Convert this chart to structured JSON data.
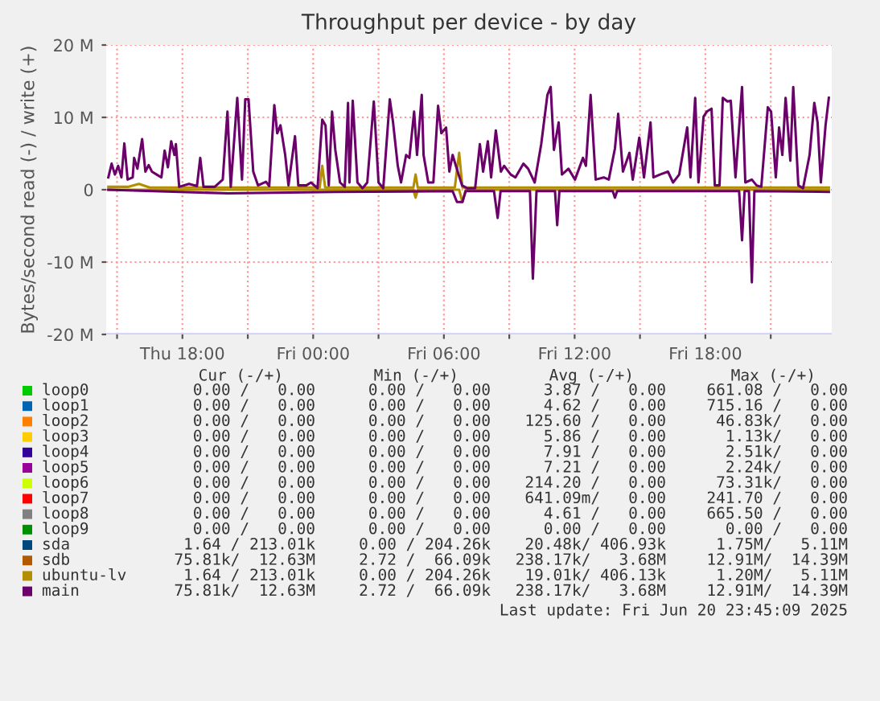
{
  "chart_data": {
    "type": "line",
    "title": "Throughput per device - by day",
    "ylabel": "Bytes/second read (-) / write (+)",
    "xlim": [
      "2025-06-19T14:30",
      "2025-06-20T23:48"
    ],
    "ylim": [
      -20,
      20
    ],
    "xticks": [
      {
        "value": "2025-06-19T15:00",
        "label": null
      },
      {
        "value": "2025-06-19T18:00",
        "label": "Thu 18:00"
      },
      {
        "value": "2025-06-19T21:00",
        "label": null
      },
      {
        "value": "2025-06-20T00:00",
        "label": "Fri 00:00"
      },
      {
        "value": "2025-06-20T03:00",
        "label": null
      },
      {
        "value": "2025-06-20T06:00",
        "label": "Fri 06:00"
      },
      {
        "value": "2025-06-20T09:00",
        "label": null
      },
      {
        "value": "2025-06-20T12:00",
        "label": "Fri 12:00"
      },
      {
        "value": "2025-06-20T15:00",
        "label": null
      },
      {
        "value": "2025-06-20T18:00",
        "label": "Fri 18:00"
      },
      {
        "value": "2025-06-20T21:00",
        "label": null
      }
    ],
    "yticks": [
      {
        "value": -20,
        "label": "-20 M"
      },
      {
        "value": -10,
        "label": "-10 M"
      },
      0,
      {
        "value": 10,
        "label": "10 M"
      },
      {
        "value": 20,
        "label": "20 M"
      }
    ],
    "grid": true,
    "legend": "bottom",
    "line_style": "solid",
    "marker": "none",
    "series": [
      {
        "name": "loop0",
        "color": "#00cc00"
      },
      {
        "name": "loop1",
        "color": "#0066b3"
      },
      {
        "name": "loop2",
        "color": "#ff8000"
      },
      {
        "name": "loop3",
        "color": "#ffcc00"
      },
      {
        "name": "loop4",
        "color": "#330099"
      },
      {
        "name": "loop5",
        "color": "#990099"
      },
      {
        "name": "loop6",
        "color": "#ccff00"
      },
      {
        "name": "loop7",
        "color": "#ff0000"
      },
      {
        "name": "loop8",
        "color": "#808080"
      },
      {
        "name": "loop9",
        "color": "#008f00"
      },
      {
        "name": "sda",
        "color": "#00487d"
      },
      {
        "name": "sdb",
        "color": "#b35a00"
      },
      {
        "name": "ubuntu-lv",
        "color": "#b38f00",
        "x": [
          "2025-06-19T14:36",
          "2025-06-19T15:30",
          "2025-06-19T16:00",
          "2025-06-19T16:30",
          "2025-06-19T20:00",
          "2025-06-20T00:18",
          "2025-06-20T00:25",
          "2025-06-20T00:33",
          "2025-06-20T04:36",
          "2025-06-20T04:42",
          "2025-06-20T04:48",
          "2025-06-20T06:30",
          "2025-06-20T06:42",
          "2025-06-20T06:51",
          "2025-06-20T07:00",
          "2025-06-20T23:40"
        ],
        "values": [
          0.4,
          0.4,
          0.8,
          0.3,
          0.3,
          0.3,
          3.3,
          0.3,
          0.3,
          2.1,
          0.3,
          0.3,
          5.1,
          0.3,
          0.3,
          0.3
        ]
      },
      {
        "color": "#b38f00",
        "x": [
          "2025-06-19T14:36",
          "2025-06-20T04:36",
          "2025-06-20T04:42",
          "2025-06-20T04:48",
          "2025-06-20T06:42",
          "2025-06-20T06:51",
          "2025-06-20T07:00",
          "2025-06-20T23:40"
        ],
        "values": [
          0,
          0,
          -1.1,
          0,
          0,
          -1.7,
          0,
          0
        ]
      },
      {
        "name": "main",
        "color": "#6b006b",
        "x": [
          "2025-06-19T14:36",
          "2025-06-19T14:45",
          "2025-06-19T14:54",
          "2025-06-19T15:03",
          "2025-06-19T15:12",
          "2025-06-19T15:20",
          "2025-06-19T15:29",
          "2025-06-19T15:43",
          "2025-06-19T15:47",
          "2025-06-19T15:56",
          "2025-06-19T16:09",
          "2025-06-19T16:18",
          "2025-06-19T16:27",
          "2025-06-19T16:36",
          "2025-06-19T16:49",
          "2025-06-19T17:02",
          "2025-06-19T17:11",
          "2025-06-19T17:20",
          "2025-06-19T17:29",
          "2025-06-19T17:38",
          "2025-06-19T17:42",
          "2025-06-19T17:51",
          "2025-06-19T18:18",
          "2025-06-19T18:40",
          "2025-06-19T18:49",
          "2025-06-19T18:58",
          "2025-06-19T19:29",
          "2025-06-19T19:51",
          "2025-06-19T20:04",
          "2025-06-19T20:13",
          "2025-06-19T20:31",
          "2025-06-19T20:40",
          "2025-06-19T20:44",
          "2025-06-19T20:53",
          "2025-06-19T21:02",
          "2025-06-19T21:15",
          "2025-06-19T21:28",
          "2025-06-19T21:50",
          "2025-06-19T21:59",
          "2025-06-19T22:13",
          "2025-06-19T22:21",
          "2025-06-19T22:30",
          "2025-06-19T22:43",
          "2025-06-19T22:52",
          "2025-06-19T23:10",
          "2025-06-19T23:19",
          "2025-06-19T23:41",
          "2025-06-19T23:54",
          "2025-06-20T00:12",
          "2025-06-20T00:25",
          "2025-06-20T00:34",
          "2025-06-20T00:43",
          "2025-06-20T00:52",
          "2025-06-20T01:01",
          "2025-06-20T01:14",
          "2025-06-20T01:27",
          "2025-06-20T01:36",
          "2025-06-20T01:40",
          "2025-06-20T01:49",
          "2025-06-20T02:02",
          "2025-06-20T02:16",
          "2025-06-20T02:29",
          "2025-06-20T02:47",
          "2025-06-20T03:00",
          "2025-06-20T03:13",
          "2025-06-20T03:31",
          "2025-06-20T03:40",
          "2025-06-20T03:53",
          "2025-06-20T04:02",
          "2025-06-20T04:16",
          "2025-06-20T04:25",
          "2025-06-20T04:38",
          "2025-06-20T04:46",
          "2025-06-20T04:59",
          "2025-06-20T05:04",
          "2025-06-20T05:17",
          "2025-06-20T05:31",
          "2025-06-20T05:44",
          "2025-06-20T05:53",
          "2025-06-20T06:06",
          "2025-06-20T06:15",
          "2025-06-20T06:24",
          "2025-06-20T06:33",
          "2025-06-20T06:50",
          "2025-06-20T07:04",
          "2025-06-20T07:26",
          "2025-06-20T07:39",
          "2025-06-20T07:48",
          "2025-06-20T08:01",
          "2025-06-20T08:10",
          "2025-06-20T08:23",
          "2025-06-20T08:37",
          "2025-06-20T08:46",
          "2025-06-20T09:04",
          "2025-06-20T09:17",
          "2025-06-20T09:39",
          "2025-06-20T09:52",
          "2025-06-20T10:10",
          "2025-06-20T10:28",
          "2025-06-20T10:45",
          "2025-06-20T10:54",
          "2025-06-20T11:03",
          "2025-06-20T11:16",
          "2025-06-20T11:25",
          "2025-06-20T11:43",
          "2025-06-20T12:01",
          "2025-06-20T12:23",
          "2025-06-20T12:31",
          "2025-06-20T12:44",
          "2025-06-20T12:58",
          "2025-06-20T13:20",
          "2025-06-20T13:34",
          "2025-06-20T13:51",
          "2025-06-20T14:00",
          "2025-06-20T14:13",
          "2025-06-20T14:31",
          "2025-06-20T14:40",
          "2025-06-20T14:58",
          "2025-06-20T15:11",
          "2025-06-20T15:29",
          "2025-06-20T15:37",
          "2025-06-20T15:55",
          "2025-06-20T16:17",
          "2025-06-20T16:31",
          "2025-06-20T16:48",
          "2025-06-20T17:10",
          "2025-06-20T17:19",
          "2025-06-20T17:32",
          "2025-06-20T17:41",
          "2025-06-20T17:55",
          "2025-06-20T18:04",
          "2025-06-20T18:17",
          "2025-06-20T18:26",
          "2025-06-20T18:39",
          "2025-06-20T18:48",
          "2025-06-20T19:01",
          "2025-06-20T19:10",
          "2025-06-20T19:23",
          "2025-06-20T19:41",
          "2025-06-20T19:50",
          "2025-06-20T20:08",
          "2025-06-20T20:21",
          "2025-06-20T20:34",
          "2025-06-20T20:52",
          "2025-06-20T21:01",
          "2025-06-20T21:14",
          "2025-06-20T21:23",
          "2025-06-20T21:32",
          "2025-06-20T21:41",
          "2025-06-20T21:54",
          "2025-06-20T22:02",
          "2025-06-20T22:16",
          "2025-06-20T22:29",
          "2025-06-20T22:47",
          "2025-06-20T23:00",
          "2025-06-20T23:09",
          "2025-06-20T23:18",
          "2025-06-20T23:31",
          "2025-06-20T23:40"
        ],
        "values": [
          1.7,
          3.6,
          2.1,
          3.3,
          1.7,
          6.4,
          1.4,
          1.7,
          4.4,
          2.9,
          7.0,
          2.5,
          3.4,
          2.5,
          2.1,
          1.7,
          5.4,
          3.1,
          6.7,
          4.8,
          6.3,
          0.4,
          0.8,
          0.5,
          4.4,
          0.4,
          0.4,
          1.4,
          10.8,
          0.4,
          12.7,
          4.8,
          1.4,
          12.5,
          12.5,
          2.5,
          0.6,
          1.1,
          0.5,
          11.7,
          7.8,
          8.9,
          4.8,
          0.6,
          7.4,
          0.6,
          0.6,
          1.0,
          0.2,
          9.7,
          8.9,
          0.6,
          10.8,
          5.5,
          1.0,
          0.4,
          12.0,
          1.0,
          12.3,
          1.0,
          0.2,
          1.0,
          12.2,
          1.0,
          0.2,
          12.5,
          9.3,
          3.3,
          1.0,
          4.8,
          4.4,
          10.8,
          4.8,
          13.1,
          4.8,
          1.0,
          1.0,
          11.6,
          7.8,
          8.6,
          2.5,
          4.8,
          3.3,
          0.6,
          0.2,
          0.2,
          6.3,
          2.5,
          6.7,
          1.7,
          8.2,
          2.5,
          3.3,
          2.1,
          1.7,
          3.6,
          2.9,
          1.0,
          6.3,
          13.1,
          14.2,
          5.5,
          9.3,
          2.1,
          2.9,
          1.4,
          4.4,
          3.3,
          13.1,
          1.4,
          1.7,
          1.4,
          5.7,
          10.5,
          2.5,
          5.1,
          1.4,
          7.2,
          1.7,
          9.3,
          1.7,
          2.1,
          2.5,
          1.0,
          2.1,
          8.6,
          1.7,
          12.7,
          1.0,
          10.1,
          10.8,
          11.2,
          0.6,
          0.6,
          12.7,
          12.2,
          12.3,
          1.7,
          14.2,
          1.0,
          1.4,
          0.6,
          0.4,
          11.4,
          10.8,
          1.7,
          8.6,
          4.8,
          12.7,
          4.0,
          14.2,
          0.6,
          0.2,
          4.8,
          12.0,
          9.3,
          1.0,
          8.9,
          12.7
        ]
      },
      {
        "color": "#6b006b",
        "x": [
          "2025-06-19T14:36",
          "2025-06-19T20:06",
          "2025-06-20T01:00",
          "2025-06-20T06:24",
          "2025-06-20T06:36",
          "2025-06-20T06:51",
          "2025-06-20T07:00",
          "2025-06-20T08:18",
          "2025-06-20T08:28",
          "2025-06-20T08:36",
          "2025-06-20T09:57",
          "2025-06-20T10:05",
          "2025-06-20T10:15",
          "2025-06-20T11:06",
          "2025-06-20T11:12",
          "2025-06-20T11:18",
          "2025-06-20T13:45",
          "2025-06-20T13:51",
          "2025-06-20T13:57",
          "2025-06-20T19:33",
          "2025-06-20T19:41",
          "2025-06-20T19:48",
          "2025-06-20T20:00",
          "2025-06-20T20:08",
          "2025-06-20T20:15",
          "2025-06-20T23:40"
        ],
        "values": [
          0,
          -0.5,
          -0.3,
          -0.2,
          -1.7,
          -1.7,
          -0.2,
          -0.2,
          -3.9,
          -0.2,
          -0.2,
          -12.3,
          -0.2,
          -0.2,
          -4.9,
          -0.2,
          -0.2,
          -1.1,
          -0.2,
          -0.2,
          -7.0,
          -0.2,
          -0.2,
          -12.8,
          -0.2,
          -0.3
        ]
      }
    ],
    "annotations": [
      "Cur (-/+)",
      "Min (-/+)",
      "Avg (-/+)",
      "Max (-/+)",
      "0.00 /   0.00",
      "0.00 /   0.00",
      "3.87 /   0.00",
      "661.08 /   0.00",
      "0.00 /   0.00",
      "0.00 /   0.00",
      "4.62 /   0.00",
      "715.16 /   0.00",
      "0.00 /   0.00",
      "0.00 /   0.00",
      "125.60 /   0.00",
      "46.83k/   0.00",
      "0.00 /   0.00",
      "0.00 /   0.00",
      "5.86 /   0.00",
      "1.13k/   0.00",
      "0.00 /   0.00",
      "0.00 /   0.00",
      "7.91 /   0.00",
      "2.51k/   0.00",
      "0.00 /   0.00",
      "0.00 /   0.00",
      "7.21 /   0.00",
      "2.24k/   0.00",
      "0.00 /   0.00",
      "0.00 /   0.00",
      "214.20 /   0.00",
      "73.31k/   0.00",
      "0.00 /   0.00",
      "0.00 /   0.00",
      "641.09m/   0.00",
      "241.70 /   0.00",
      "0.00 /   0.00",
      "0.00 /   0.00",
      "4.61 /   0.00",
      "665.50 /   0.00",
      "0.00 /   0.00",
      "0.00 /   0.00",
      "0.00 /   0.00",
      "0.00 /   0.00",
      "1.64 / 213.01k",
      "0.00 / 204.26k",
      "20.48k/ 406.93k",
      "1.75M/   5.11M",
      "75.81k/  12.63M",
      "2.72 /  66.09k",
      "238.17k/   3.68M",
      "12.91M/  14.39M",
      "1.64 / 213.01k",
      "0.00 / 204.26k",
      "19.01k/ 406.13k",
      "1.20M/   5.11M",
      "75.81k/  12.63M",
      "2.72 /  66.09k",
      "238.17k/   3.68M",
      "12.91M/  14.39M",
      "Last update: Fri Jun 20 23:45:09 2025"
    ]
  }
}
